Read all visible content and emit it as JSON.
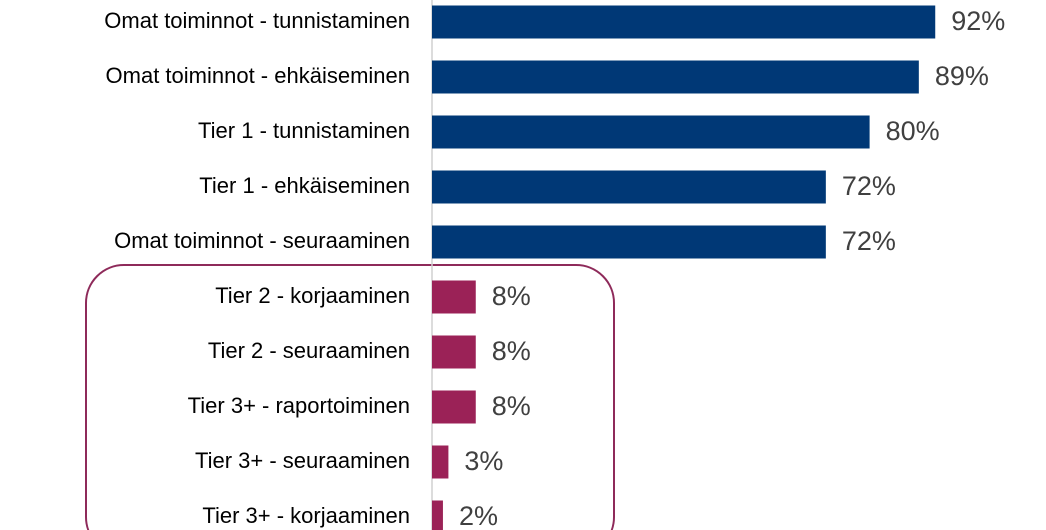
{
  "chart_data": {
    "type": "bar",
    "orientation": "horizontal",
    "categories": [
      "Omat toiminnot - tunnistaminen",
      "Omat toiminnot - ehkäiseminen",
      "Tier 1 - tunnistaminen",
      "Tier 1 - ehkäiseminen",
      "Omat toiminnot - seuraaminen",
      "Tier 2 - korjaaminen",
      "Tier 2 - seuraaminen",
      "Tier 3+ - raportoiminen",
      "Tier 3+ - seuraaminen",
      "Tier 3+ - korjaaminen"
    ],
    "values": [
      92,
      89,
      80,
      72,
      72,
      8,
      8,
      8,
      3,
      2
    ],
    "value_labels": [
      "92%",
      "89%",
      "80%",
      "72%",
      "72%",
      "8%",
      "8%",
      "8%",
      "3%",
      "2%"
    ],
    "colors": [
      "#003876",
      "#003876",
      "#003876",
      "#003876",
      "#003876",
      "#9b2257",
      "#9b2257",
      "#9b2257",
      "#9b2257",
      "#9b2257"
    ],
    "xlim": [
      0,
      100
    ]
  }
}
